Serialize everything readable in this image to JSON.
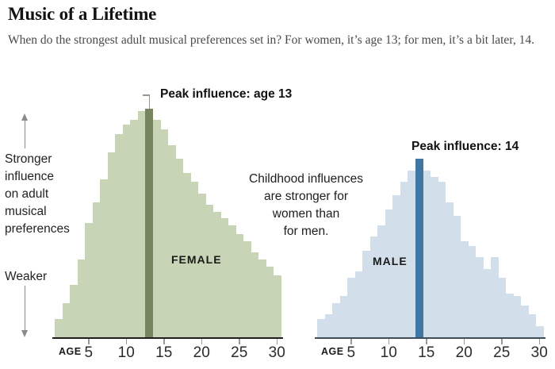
{
  "header": {
    "title": "Music of a Lifetime",
    "subtitle": "When do the strongest adult musical preferences set in? For women, it’s age 13; for men, it’s a bit later, 14."
  },
  "y_axis_annotation": {
    "stronger_lines": [
      "Stronger",
      "influence",
      "on adult",
      "musical",
      "preferences"
    ],
    "weaker": "Weaker"
  },
  "center_note": {
    "lines": [
      "Childhood influences",
      "are stronger for",
      "women than",
      "for men."
    ]
  },
  "colors": {
    "female_bar": "#c7d4b5",
    "female_peak": "#76845f",
    "male_bar": "#d2dfeb",
    "male_peak": "#3f78a2",
    "female_axis": "#1f1f1f",
    "male_axis": "#3e4d59",
    "connector": "#96988f",
    "arrow": "#8a8a8a"
  },
  "chart_data": [
    {
      "type": "bar",
      "title": "FEMALE",
      "peak_label": "Peak influence: age 13",
      "peak_age": 13,
      "xlabel": "AGE",
      "x_ticks": [
        5,
        10,
        15,
        20,
        25,
        30
      ],
      "ylim": [
        0,
        100
      ],
      "units": "relative influence strength, female peak = 100",
      "x": [
        1,
        2,
        3,
        4,
        5,
        6,
        7,
        8,
        9,
        10,
        11,
        12,
        13,
        14,
        15,
        16,
        17,
        18,
        19,
        20,
        21,
        22,
        23,
        24,
        25,
        26,
        27,
        28,
        29,
        30
      ],
      "values": [
        8,
        15,
        23,
        34,
        50,
        59,
        69,
        81,
        89,
        93,
        95,
        99,
        100,
        95,
        91,
        84,
        78,
        72,
        68,
        63,
        58,
        55,
        52,
        49,
        45,
        42,
        37,
        34,
        31,
        27
      ]
    },
    {
      "type": "bar",
      "title": "MALE",
      "peak_label": "Peak influence: 14",
      "peak_age": 14,
      "xlabel": "AGE",
      "x_ticks": [
        5,
        10,
        15,
        20,
        25,
        30
      ],
      "ylim": [
        0,
        100
      ],
      "units": "relative influence strength, female peak = 100",
      "x": [
        1,
        2,
        3,
        4,
        5,
        6,
        7,
        8,
        9,
        10,
        11,
        12,
        13,
        14,
        15,
        16,
        17,
        18,
        19,
        20,
        21,
        22,
        23,
        24,
        25,
        26,
        27,
        28,
        29,
        30
      ],
      "values": [
        8,
        10,
        15,
        18,
        26,
        29,
        38,
        44,
        49,
        56,
        62,
        68,
        73,
        78,
        73,
        70,
        68,
        59,
        53,
        42,
        40,
        35,
        30,
        35,
        26,
        19,
        18,
        14,
        10,
        5
      ]
    }
  ]
}
